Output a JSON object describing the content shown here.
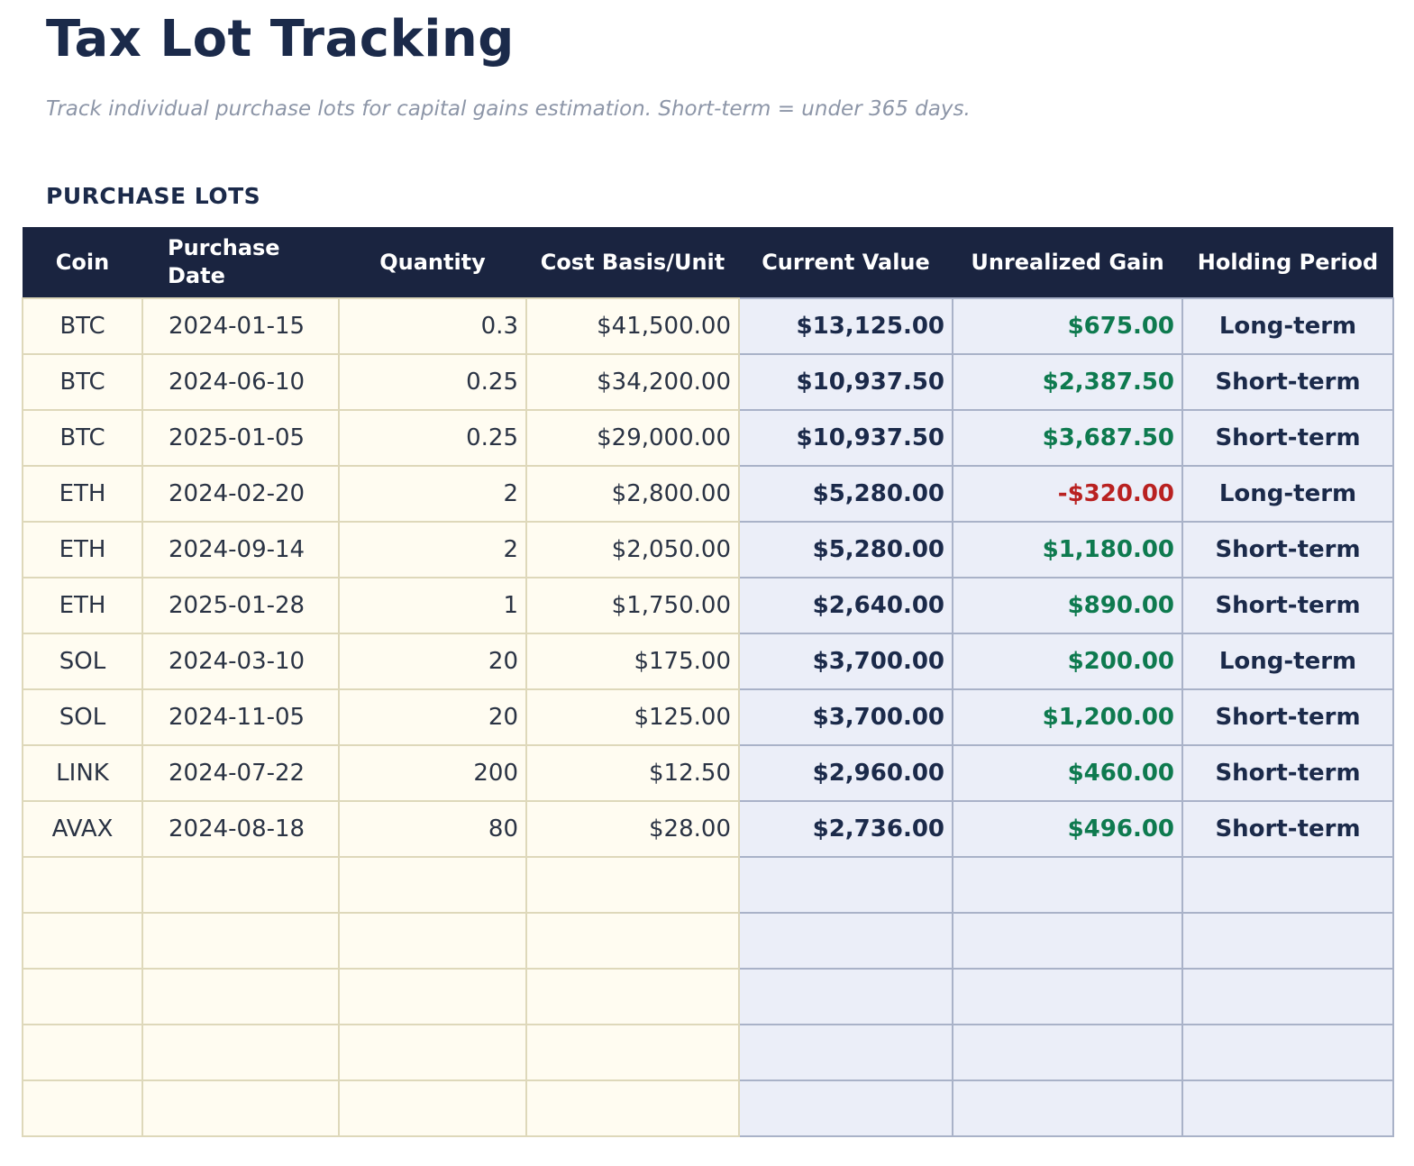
{
  "page": {
    "title": "Tax Lot Tracking",
    "subtitle": "Track individual purchase lots for capital gains estimation. Short-term = under 365 days.",
    "section_title": "PURCHASE LOTS"
  },
  "colors": {
    "title_navy": "#1b2a4a",
    "subtitle_gray": "#8d96a8",
    "header_bg": "#1a2440",
    "header_text": "#ffffff",
    "row_bg_left": "#fffcf1",
    "border_left": "#ded8ba",
    "row_bg_right": "#ebeef8",
    "border_right": "#a9b2c8",
    "text_primary": "#2a3344",
    "text_navy_bold": "#1b2a4a",
    "gain_positive": "#0e7a4f",
    "gain_negative": "#b92121"
  },
  "table": {
    "columns": [
      "Coin",
      "Purchase Date",
      "Quantity",
      "Cost Basis/Unit",
      "Current Value",
      "Unrealized Gain",
      "Holding Period"
    ],
    "rows": [
      {
        "coin": "BTC",
        "purchase_date": "2024-01-15",
        "quantity": "0.3",
        "cost_basis": "$41,500.00",
        "current_value": "$13,125.00",
        "unrealized_gain": "$675.00",
        "gain_direction": "positive",
        "holding_period": "Long-term"
      },
      {
        "coin": "BTC",
        "purchase_date": "2024-06-10",
        "quantity": "0.25",
        "cost_basis": "$34,200.00",
        "current_value": "$10,937.50",
        "unrealized_gain": "$2,387.50",
        "gain_direction": "positive",
        "holding_period": "Short-term"
      },
      {
        "coin": "BTC",
        "purchase_date": "2025-01-05",
        "quantity": "0.25",
        "cost_basis": "$29,000.00",
        "current_value": "$10,937.50",
        "unrealized_gain": "$3,687.50",
        "gain_direction": "positive",
        "holding_period": "Short-term"
      },
      {
        "coin": "ETH",
        "purchase_date": "2024-02-20",
        "quantity": "2",
        "cost_basis": "$2,800.00",
        "current_value": "$5,280.00",
        "unrealized_gain": "-$320.00",
        "gain_direction": "negative",
        "holding_period": "Long-term"
      },
      {
        "coin": "ETH",
        "purchase_date": "2024-09-14",
        "quantity": "2",
        "cost_basis": "$2,050.00",
        "current_value": "$5,280.00",
        "unrealized_gain": "$1,180.00",
        "gain_direction": "positive",
        "holding_period": "Short-term"
      },
      {
        "coin": "ETH",
        "purchase_date": "2025-01-28",
        "quantity": "1",
        "cost_basis": "$1,750.00",
        "current_value": "$2,640.00",
        "unrealized_gain": "$890.00",
        "gain_direction": "positive",
        "holding_period": "Short-term"
      },
      {
        "coin": "SOL",
        "purchase_date": "2024-03-10",
        "quantity": "20",
        "cost_basis": "$175.00",
        "current_value": "$3,700.00",
        "unrealized_gain": "$200.00",
        "gain_direction": "positive",
        "holding_period": "Long-term"
      },
      {
        "coin": "SOL",
        "purchase_date": "2024-11-05",
        "quantity": "20",
        "cost_basis": "$125.00",
        "current_value": "$3,700.00",
        "unrealized_gain": "$1,200.00",
        "gain_direction": "positive",
        "holding_period": "Short-term"
      },
      {
        "coin": "LINK",
        "purchase_date": "2024-07-22",
        "quantity": "200",
        "cost_basis": "$12.50",
        "current_value": "$2,960.00",
        "unrealized_gain": "$460.00",
        "gain_direction": "positive",
        "holding_period": "Short-term"
      },
      {
        "coin": "AVAX",
        "purchase_date": "2024-08-18",
        "quantity": "80",
        "cost_basis": "$28.00",
        "current_value": "$2,736.00",
        "unrealized_gain": "$496.00",
        "gain_direction": "positive",
        "holding_period": "Short-term"
      }
    ],
    "empty_row_count": 5
  }
}
